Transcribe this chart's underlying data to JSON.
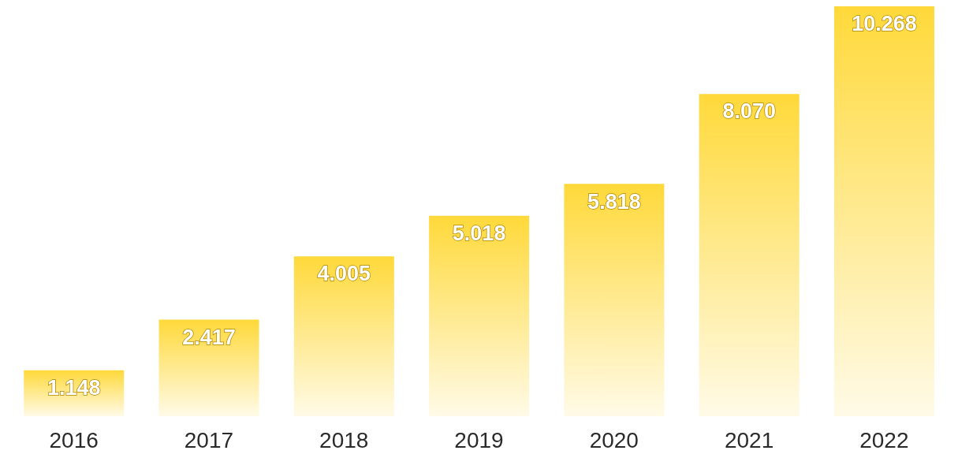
{
  "chart_data": {
    "type": "bar",
    "categories": [
      "2016",
      "2017",
      "2018",
      "2019",
      "2020",
      "2021",
      "2022"
    ],
    "values": [
      1148,
      2417,
      4005,
      5018,
      5818,
      8070,
      10268
    ],
    "value_labels": [
      "1.148",
      "2.417",
      "4.005",
      "5.018",
      "5.818",
      "8.070",
      "10.268"
    ],
    "color": "#ffd93a",
    "grid": false,
    "legend": false
  }
}
